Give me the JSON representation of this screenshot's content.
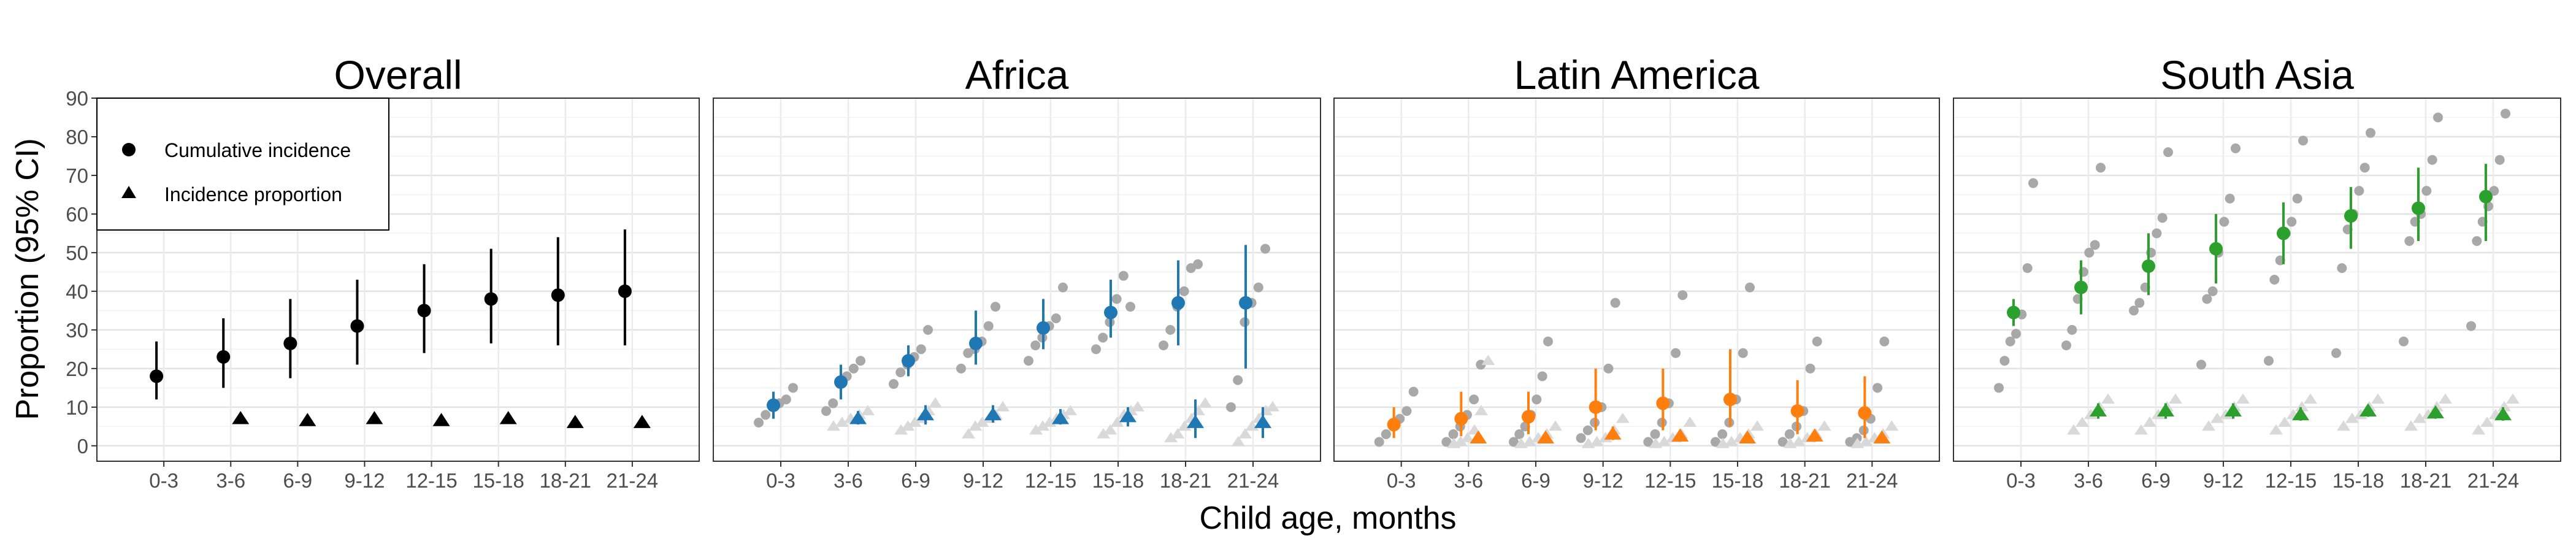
{
  "chart_data": {
    "type": "scatter",
    "ylabel": "Proportion (95% CI)",
    "xlabel": "Child age, months",
    "categories": [
      "0-3",
      "3-6",
      "6-9",
      "9-12",
      "12-15",
      "15-18",
      "18-21",
      "21-24"
    ],
    "ylim": [
      -4,
      90
    ],
    "yticks": [
      0,
      10,
      20,
      30,
      40,
      50,
      60,
      70,
      80,
      90
    ],
    "grid": true,
    "legend": {
      "placement": "top-left inside first panel",
      "entries": [
        {
          "name": "Cumulative incidence",
          "marker": "circle"
        },
        {
          "name": "Incidence proportion",
          "marker": "triangle"
        }
      ]
    },
    "panels": [
      {
        "title": "Overall",
        "color": "#000000",
        "cumulative": {
          "values": [
            18,
            23,
            26.5,
            31,
            35,
            38,
            39,
            40
          ],
          "lower": [
            12,
            15,
            17.5,
            21,
            24,
            26.5,
            26,
            26
          ],
          "upper": [
            27,
            33,
            38,
            43,
            47,
            51,
            54,
            56
          ]
        },
        "incidence": {
          "values": [
            null,
            7,
            6.5,
            7,
            6.5,
            7,
            6,
            6
          ],
          "lower": [
            null,
            null,
            null,
            null,
            null,
            null,
            null,
            null
          ],
          "upper": [
            null,
            null,
            null,
            null,
            null,
            null,
            null,
            null
          ]
        },
        "cohorts_cumulative": [],
        "cohorts_incidence": []
      },
      {
        "title": "Africa",
        "color": "#1f77b4",
        "cumulative": {
          "values": [
            10.5,
            16.5,
            22,
            26.5,
            30.5,
            34.5,
            37,
            37
          ],
          "lower": [
            7,
            12,
            18,
            21,
            25,
            28,
            26,
            20
          ],
          "upper": [
            14,
            21,
            26,
            35,
            38,
            43,
            48,
            52
          ]
        },
        "incidence": {
          "values": [
            null,
            7,
            8,
            8,
            7,
            7.5,
            6,
            6
          ],
          "lower": [
            null,
            5.5,
            5.5,
            6,
            5.5,
            5,
            2,
            2
          ],
          "upper": [
            null,
            9,
            10.5,
            10.5,
            9.5,
            10,
            12,
            10
          ]
        },
        "cohorts_cumulative": [
          [
            6,
            8,
            10,
            11,
            12,
            15
          ],
          [
            9,
            11,
            16,
            18,
            20,
            22
          ],
          [
            16,
            19,
            21,
            23,
            25,
            30
          ],
          [
            20,
            24,
            25,
            27,
            31,
            36
          ],
          [
            22,
            26,
            28,
            31,
            33,
            41
          ],
          [
            25,
            28,
            32,
            38,
            44,
            36
          ],
          [
            26,
            30,
            36,
            40,
            46,
            47
          ],
          [
            10,
            17,
            32,
            37,
            41,
            51
          ]
        ],
        "cohorts_incidence": [
          [],
          [
            5,
            6,
            7,
            8,
            9
          ],
          [
            4,
            5,
            6,
            7,
            9,
            11
          ],
          [
            3,
            5,
            6,
            7,
            8,
            10
          ],
          [
            4,
            5,
            6,
            7,
            8,
            9
          ],
          [
            3,
            4,
            6,
            8,
            9,
            10
          ],
          [
            2,
            3,
            5,
            7,
            9,
            11
          ],
          [
            1,
            3,
            5,
            7,
            9,
            10
          ]
        ]
      },
      {
        "title": "Latin America",
        "color": "#ff7f0e",
        "cumulative": {
          "values": [
            5.5,
            7,
            7.5,
            10,
            11,
            12,
            9,
            8.5
          ],
          "lower": [
            2,
            2.5,
            3,
            4,
            4,
            5,
            3,
            2
          ],
          "upper": [
            10,
            14,
            14,
            20,
            20,
            25,
            17,
            18
          ]
        },
        "incidence": {
          "values": [
            null,
            2,
            2,
            3,
            2.5,
            2,
            2.5,
            2
          ],
          "lower": [
            null,
            1,
            1,
            1.5,
            1,
            1,
            1,
            1
          ],
          "upper": [
            null,
            3.5,
            3.5,
            5,
            4,
            3.5,
            4,
            3.5
          ]
        },
        "cohorts_cumulative": [
          [
            1,
            3,
            5,
            7,
            9,
            14
          ],
          [
            1,
            3,
            5,
            8,
            12,
            21
          ],
          [
            1,
            3,
            5,
            8,
            12,
            18,
            27
          ],
          [
            2,
            4,
            6,
            10,
            20,
            37
          ],
          [
            1,
            3,
            6,
            11,
            24,
            39
          ],
          [
            1,
            3,
            6,
            12,
            24,
            41
          ],
          [
            1,
            3,
            5,
            9,
            20,
            27
          ],
          [
            1,
            2,
            4,
            7,
            15,
            27
          ]
        ],
        "cohorts_incidence": [
          [],
          [
            0.5,
            1,
            2,
            4,
            9,
            22
          ],
          [
            0.5,
            1,
            2,
            3,
            5
          ],
          [
            0.5,
            1,
            2,
            4,
            7
          ],
          [
            0.5,
            1,
            2,
            3,
            6
          ],
          [
            0.5,
            1,
            2,
            3,
            5
          ],
          [
            0.5,
            1,
            2,
            3,
            5
          ],
          [
            0.5,
            1,
            2,
            3,
            5
          ]
        ]
      },
      {
        "title": "South Asia",
        "color": "#2ca02c",
        "cumulative": {
          "values": [
            34.5,
            41,
            46.5,
            51,
            55,
            59.5,
            61.5,
            64.5
          ],
          "lower": [
            31,
            34,
            39,
            42,
            47,
            51,
            53,
            53
          ],
          "upper": [
            38,
            48,
            55,
            60,
            63,
            67,
            72,
            73
          ]
        },
        "incidence": {
          "values": [
            null,
            9,
            9,
            9,
            8,
            9,
            8.5,
            8
          ],
          "lower": [
            null,
            7,
            7,
            7,
            6.5,
            7.5,
            7,
            6.5
          ],
          "upper": [
            null,
            11,
            11,
            11,
            10,
            10.5,
            10,
            10
          ]
        },
        "cohorts_cumulative": [
          [
            15,
            22,
            27,
            29,
            34,
            46,
            68
          ],
          [
            26,
            30,
            38,
            45,
            50,
            52,
            72
          ],
          [
            35,
            37,
            41,
            50,
            55,
            59,
            76
          ],
          [
            21,
            38,
            40,
            50,
            58,
            64,
            77
          ],
          [
            22,
            43,
            48,
            55,
            58,
            64,
            79
          ],
          [
            24,
            46,
            56,
            60,
            66,
            72,
            81
          ],
          [
            27,
            53,
            58,
            60,
            66,
            74,
            85
          ],
          [
            31,
            53,
            58,
            62,
            66,
            74,
            86
          ]
        ],
        "cohorts_incidence": [
          [],
          [
            4,
            6,
            8,
            10,
            12
          ],
          [
            4,
            6,
            8,
            10,
            12
          ],
          [
            5,
            7,
            8,
            10,
            12
          ],
          [
            4,
            6,
            8,
            10,
            12
          ],
          [
            5,
            7,
            8,
            10,
            12
          ],
          [
            5,
            7,
            8,
            10,
            12
          ],
          [
            4,
            6,
            8,
            10,
            12
          ]
        ]
      }
    ]
  }
}
